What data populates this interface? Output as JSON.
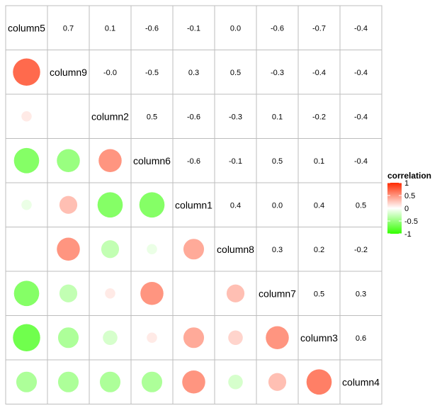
{
  "chart_data": {
    "type": "heatmap",
    "variables": [
      "column5",
      "column9",
      "column2",
      "column6",
      "column1",
      "column8",
      "column7",
      "column3",
      "column4"
    ],
    "matrix": [
      [
        1.0,
        0.7,
        0.1,
        -0.6,
        -0.1,
        0.0,
        -0.6,
        -0.7,
        -0.4
      ],
      [
        0.7,
        1.0,
        -0.0,
        -0.5,
        0.3,
        0.5,
        -0.3,
        -0.4,
        -0.4
      ],
      [
        0.1,
        -0.0,
        1.0,
        0.5,
        -0.6,
        -0.3,
        0.1,
        -0.2,
        -0.4
      ],
      [
        -0.6,
        -0.5,
        0.5,
        1.0,
        -0.6,
        -0.1,
        0.5,
        0.1,
        -0.4
      ],
      [
        -0.1,
        0.3,
        -0.6,
        -0.6,
        1.0,
        0.4,
        0.0,
        0.4,
        0.5
      ],
      [
        0.0,
        0.5,
        -0.3,
        -0.1,
        0.4,
        1.0,
        0.3,
        0.2,
        -0.2
      ],
      [
        -0.6,
        -0.3,
        0.1,
        0.5,
        0.0,
        0.3,
        1.0,
        0.5,
        0.3
      ],
      [
        -0.7,
        -0.4,
        -0.2,
        0.1,
        0.4,
        0.2,
        0.5,
        1.0,
        0.6
      ],
      [
        -0.4,
        -0.4,
        -0.4,
        -0.4,
        0.5,
        -0.2,
        0.3,
        0.6,
        1.0
      ]
    ],
    "value_labels": [
      [
        "",
        "0.7",
        "0.1",
        "-0.6",
        "-0.1",
        "0.0",
        "-0.6",
        "-0.7",
        "-0.4"
      ],
      [
        "",
        "",
        "-0.0",
        "-0.5",
        "0.3",
        "0.5",
        "-0.3",
        "-0.4",
        "-0.4"
      ],
      [
        "",
        "",
        "",
        "0.5",
        "-0.6",
        "-0.3",
        "0.1",
        "-0.2",
        "-0.4"
      ],
      [
        "",
        "",
        "",
        "",
        "-0.6",
        "-0.1",
        "0.5",
        "0.1",
        "-0.4"
      ],
      [
        "",
        "",
        "",
        "",
        "",
        "0.4",
        "0.0",
        "0.4",
        "0.5"
      ],
      [
        "",
        "",
        "",
        "",
        "",
        "",
        "0.3",
        "0.2",
        "-0.2"
      ],
      [
        "",
        "",
        "",
        "",
        "",
        "",
        "",
        "0.5",
        "0.3"
      ],
      [
        "",
        "",
        "",
        "",
        "",
        "",
        "",
        "",
        "0.6"
      ],
      [
        "",
        "",
        "",
        "",
        "",
        "",
        "",
        "",
        ""
      ]
    ],
    "legend": {
      "title": "correlation",
      "ticks": [
        1,
        0.5,
        0,
        -0.5,
        -1
      ],
      "tick_labels": [
        "1",
        "0.5",
        "0",
        "-0.5",
        "-1"
      ],
      "placement": "right"
    },
    "colors": {
      "positive": "#ff2a00",
      "neutral": "#ffffff",
      "negative": "#33ff00",
      "grid": "#bdbdbd"
    },
    "layout": {
      "upper_triangle": "numbers",
      "lower_triangle": "circles",
      "diagonal": "variable names"
    }
  }
}
